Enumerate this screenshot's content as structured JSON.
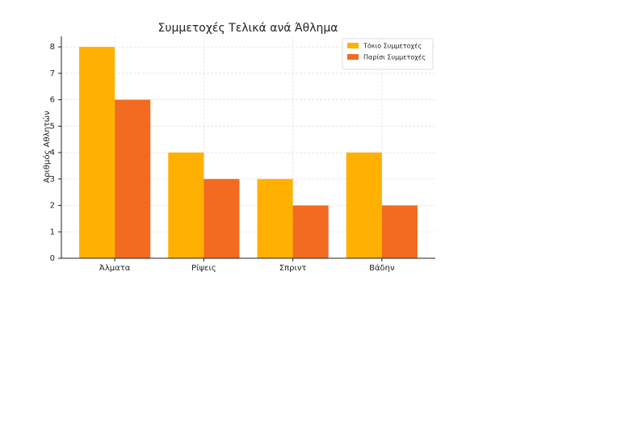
{
  "chart_data": {
    "type": "bar",
    "title": "Συμμετοχές Τελικά ανά Άθλημα",
    "y_label": "Αριθμός Αθλητών",
    "categories": [
      "Άλματα",
      "Ρίψεις",
      "Σπριντ",
      "Βάδην"
    ],
    "series": [
      {
        "name": "Τόκιο Συμμετοχές",
        "color": "#ffb000",
        "values": [
          8,
          4,
          3,
          4
        ]
      },
      {
        "name": "Παρίσι Συμμετοχές",
        "color": "#f26b21",
        "values": [
          6,
          3,
          2,
          2
        ]
      }
    ],
    "ylim": [
      0,
      8.4
    ],
    "yticks": [
      0,
      1,
      2,
      3,
      4,
      5,
      6,
      7,
      8
    ],
    "grid": true,
    "legend": "upper right"
  }
}
